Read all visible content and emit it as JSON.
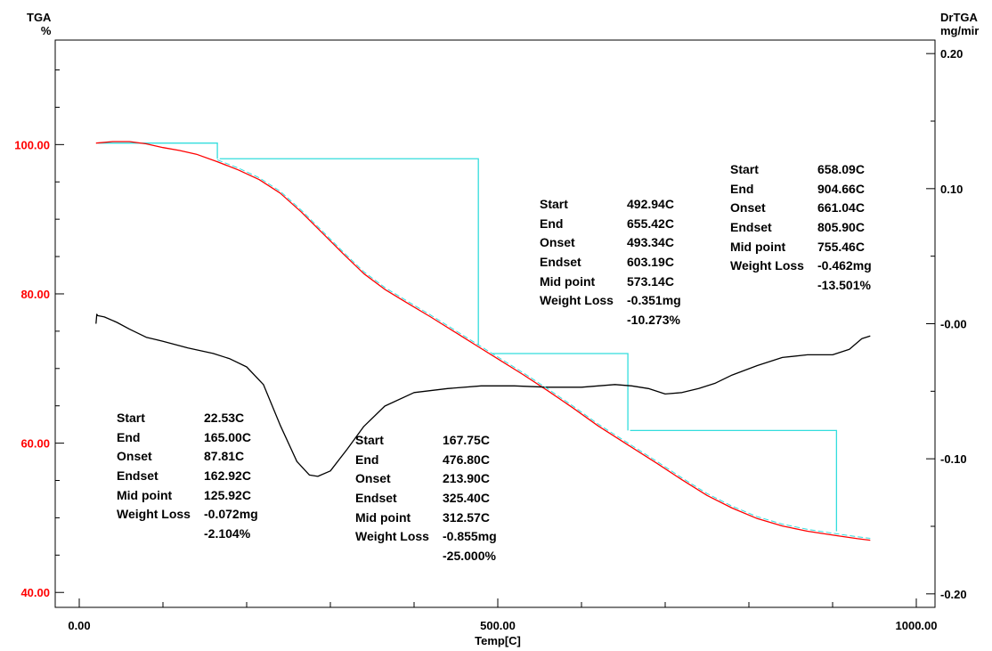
{
  "chart_data": {
    "type": "line",
    "y_left_title": "TGA",
    "y_left_unit": "%",
    "y_right_title": "DrTGA",
    "y_right_unit": "mg/mir",
    "xlabel": "Temp[C]",
    "xlim": [
      -20,
      1020
    ],
    "ylim_left": [
      38,
      114
    ],
    "ylim_right": [
      -0.21,
      0.21
    ],
    "x_ticks": [
      {
        "value": 0,
        "label": "0.00"
      },
      {
        "value": 500,
        "label": "500.00"
      },
      {
        "value": 1000,
        "label": "1000.00"
      }
    ],
    "x_minor_ticks": [
      100,
      200,
      300,
      400,
      600,
      700,
      800,
      900
    ],
    "y_left_ticks": [
      {
        "value": 100,
        "label": "100.00"
      },
      {
        "value": 80,
        "label": "80.00"
      },
      {
        "value": 60,
        "label": "60.00"
      },
      {
        "value": 40,
        "label": "40.00"
      }
    ],
    "y_right_ticks": [
      {
        "value": 0.2,
        "label": "0.20"
      },
      {
        "value": 0.1,
        "label": "0.10"
      },
      {
        "value": 0.0,
        "label": "-0.00"
      },
      {
        "value": -0.1,
        "label": "-0.10"
      },
      {
        "value": -0.2,
        "label": "-0.20"
      }
    ],
    "colors": {
      "tga": "#ff0000",
      "drtga": "#000000",
      "analysis": "#33dddd",
      "left_tick_labels": "#ff0000"
    },
    "series": [
      {
        "key": "tga",
        "axis": "left",
        "x": [
          20,
          40,
          60,
          80,
          100,
          120,
          140,
          165,
          190,
          215,
          240,
          265,
          290,
          315,
          340,
          365,
          390,
          420,
          450,
          477,
          500,
          530,
          560,
          590,
          620,
          655,
          690,
          720,
          750,
          780,
          810,
          840,
          870,
          905,
          930,
          945
        ],
        "y": [
          100.2,
          100.4,
          100.4,
          100.1,
          99.6,
          99.2,
          98.7,
          97.7,
          96.6,
          95.3,
          93.5,
          91.0,
          88.2,
          85.4,
          82.7,
          80.6,
          78.9,
          76.9,
          74.8,
          72.9,
          71.3,
          69.2,
          67.0,
          64.7,
          62.3,
          59.8,
          57.3,
          55.1,
          53.0,
          51.3,
          49.9,
          48.9,
          48.2,
          47.6,
          47.2,
          47.0
        ]
      },
      {
        "key": "drtga",
        "axis": "right",
        "x": [
          20,
          21,
          22,
          30,
          45,
          60,
          80,
          100,
          130,
          160,
          180,
          200,
          220,
          240,
          260,
          275,
          285,
          300,
          320,
          340,
          365,
          400,
          440,
          480,
          520,
          560,
          600,
          640,
          660,
          680,
          700,
          720,
          740,
          760,
          780,
          810,
          840,
          870,
          900,
          920,
          935,
          945
        ],
        "y": [
          -0.0,
          0.007,
          0.006,
          0.005,
          0.001,
          -0.004,
          -0.01,
          -0.013,
          -0.018,
          -0.022,
          -0.026,
          -0.032,
          -0.045,
          -0.075,
          -0.102,
          -0.112,
          -0.113,
          -0.109,
          -0.093,
          -0.076,
          -0.061,
          -0.051,
          -0.048,
          -0.046,
          -0.046,
          -0.047,
          -0.047,
          -0.045,
          -0.046,
          -0.048,
          -0.052,
          -0.051,
          -0.048,
          -0.044,
          -0.038,
          -0.031,
          -0.025,
          -0.023,
          -0.023,
          -0.019,
          -0.011,
          -0.009
        ]
      }
    ],
    "analysis_steps": [
      {
        "start": 22.53,
        "end": 165.0,
        "onset": 87.81,
        "endset": 162.92,
        "y_high": 100.2,
        "y_low": 98.1
      },
      {
        "start": 167.75,
        "end": 476.8,
        "onset": 213.9,
        "endset": 325.4,
        "y_high": 98.1,
        "y_low": 73.1
      },
      {
        "start": 492.94,
        "end": 655.42,
        "onset": 493.34,
        "endset": 603.19,
        "y_high": 72.0,
        "y_low": 61.7
      },
      {
        "start": 658.09,
        "end": 904.66,
        "onset": 661.04,
        "endset": 805.9,
        "y_high": 61.7,
        "y_low": 48.2
      }
    ],
    "annotations": [
      {
        "rows": [
          [
            "Start",
            "22.53C"
          ],
          [
            "End",
            "165.00C"
          ],
          [
            "Onset",
            "87.81C"
          ],
          [
            "Endset",
            "162.92C"
          ],
          [
            "Mid point",
            "125.92C"
          ],
          [
            "Weight Loss",
            "-0.072mg"
          ]
        ],
        "percent": "-2.104%"
      },
      {
        "rows": [
          [
            "Start",
            "167.75C"
          ],
          [
            "End",
            "476.80C"
          ],
          [
            "Onset",
            "213.90C"
          ],
          [
            "Endset",
            "325.40C"
          ],
          [
            "Mid point",
            "312.57C"
          ],
          [
            "Weight Loss",
            "-0.855mg"
          ]
        ],
        "percent": "-25.000%"
      },
      {
        "rows": [
          [
            "Start",
            "492.94C"
          ],
          [
            "End",
            "655.42C"
          ],
          [
            "Onset",
            "493.34C"
          ],
          [
            "Endset",
            "603.19C"
          ],
          [
            "Mid point",
            "573.14C"
          ],
          [
            "Weight Loss",
            "-0.351mg"
          ]
        ],
        "percent": "-10.273%"
      },
      {
        "rows": [
          [
            "Start",
            "658.09C"
          ],
          [
            "End",
            "904.66C"
          ],
          [
            "Onset",
            "661.04C"
          ],
          [
            "Endset",
            "805.90C"
          ],
          [
            "Mid point",
            "755.46C"
          ],
          [
            "Weight Loss",
            "-0.462mg"
          ]
        ],
        "percent": "-13.501%"
      }
    ]
  }
}
